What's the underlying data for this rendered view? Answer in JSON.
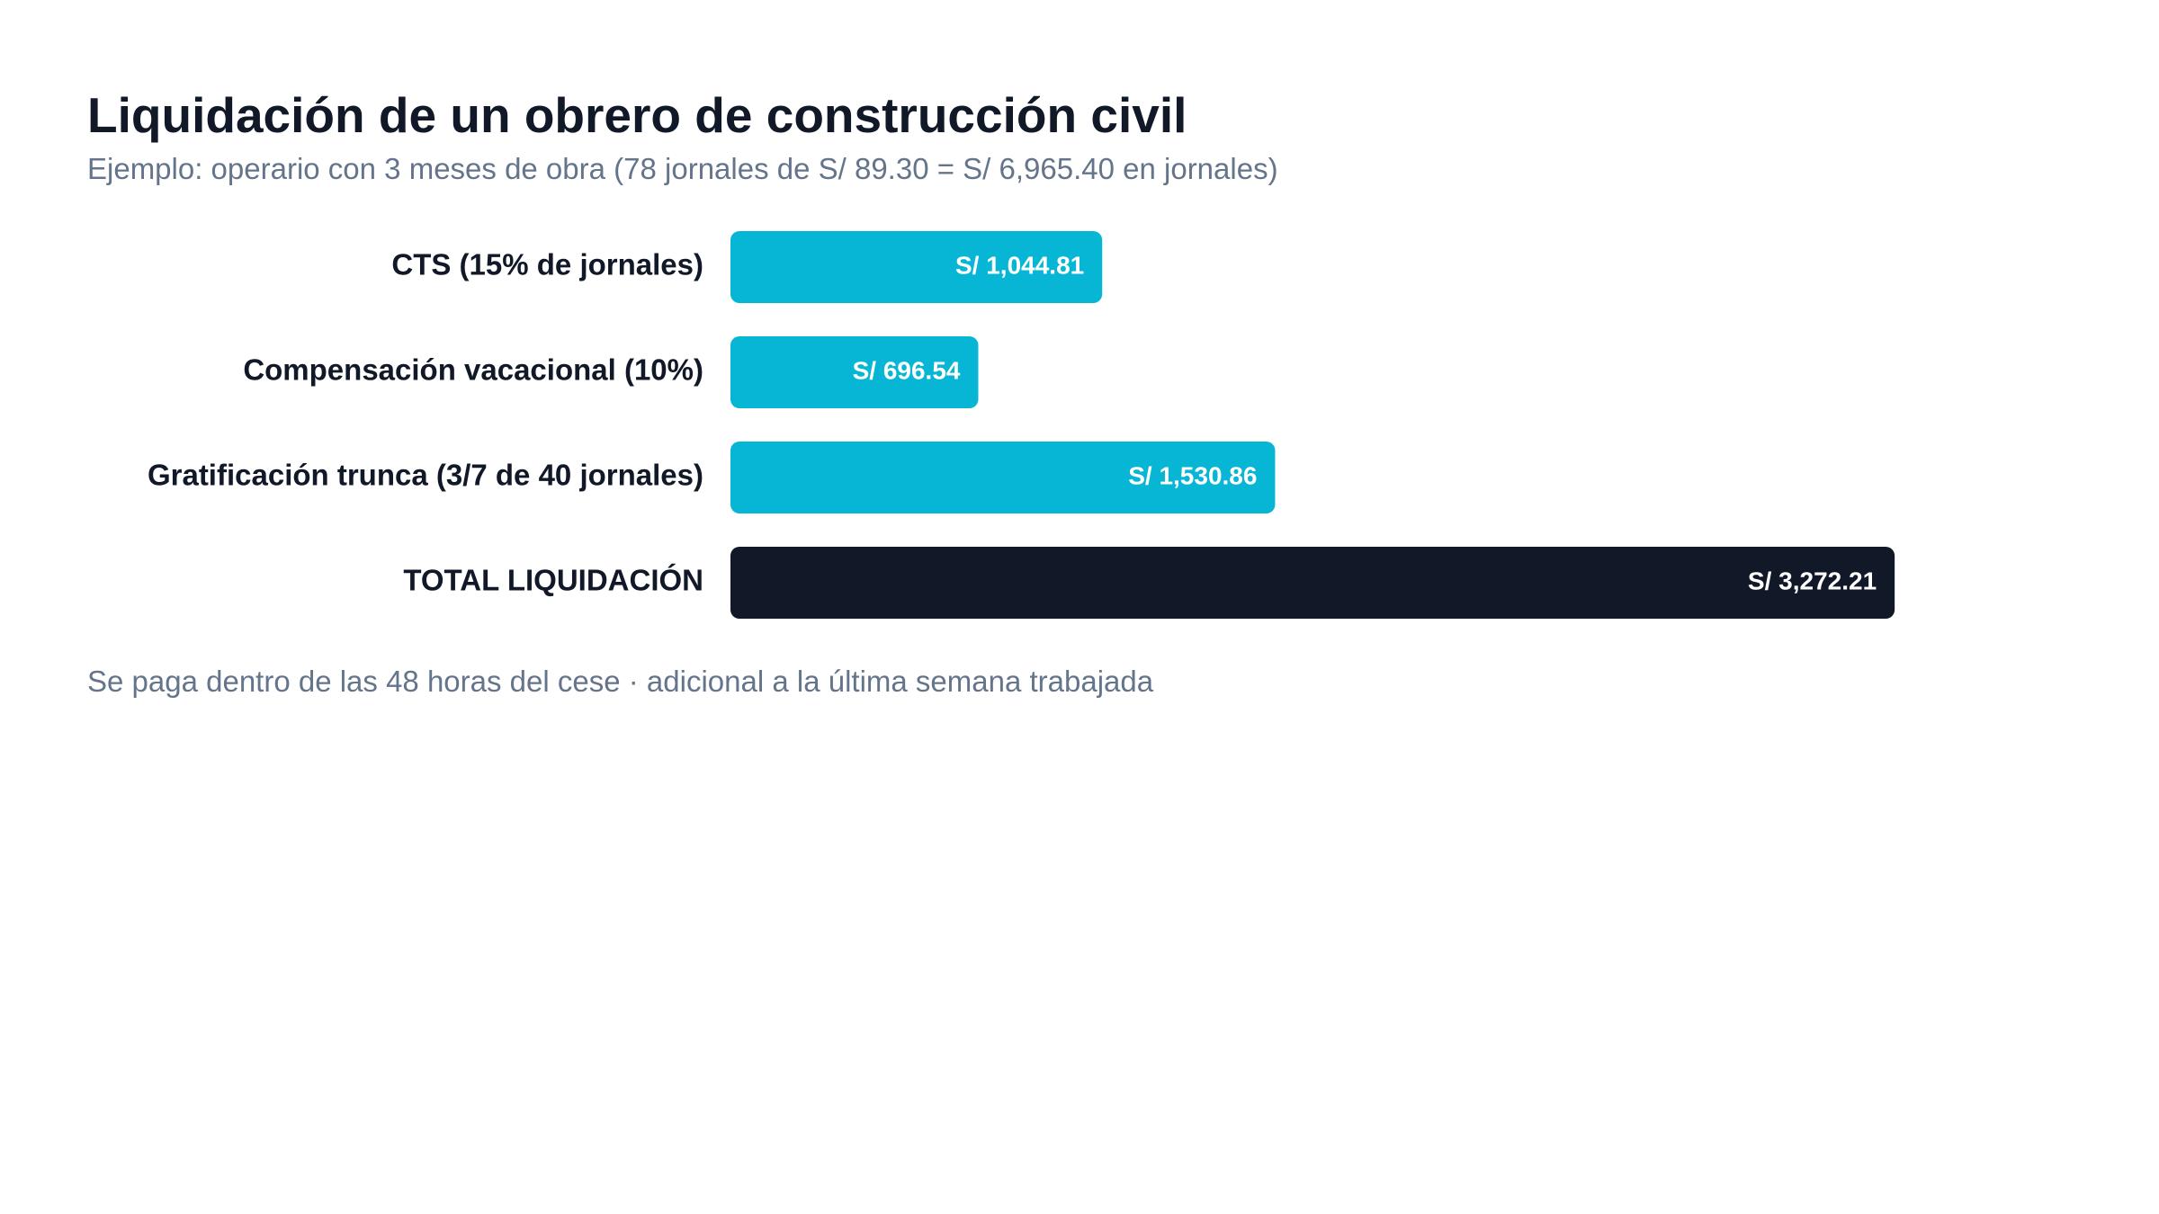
{
  "chart_data": {
    "type": "bar",
    "orientation": "horizontal",
    "title": "Liquidación de un obrero de construcción civil",
    "subtitle": "Ejemplo: operario con 3 meses de obra (78 jornales de S/ 89.30 = S/ 6,965.40 en jornales)",
    "footnote": "Se paga dentro de las 48 horas del cese · adicional a la última semana trabajada",
    "categories": [
      "CTS (15% de jornales)",
      "Compensación vacacional (10%)",
      "Gratificación trunca (3/7 de 40 jornales)",
      "TOTAL LIQUIDACIÓN"
    ],
    "values": [
      1044.81,
      696.54,
      1530.86,
      3272.21
    ],
    "value_labels": [
      "S/ 1,044.81",
      "S/ 696.54",
      "S/ 1,530.86",
      "S/ 3,272.21"
    ],
    "colors": [
      "#06b6d4",
      "#06b6d4",
      "#06b6d4",
      "#111827"
    ],
    "grid": false,
    "legend": "none"
  }
}
